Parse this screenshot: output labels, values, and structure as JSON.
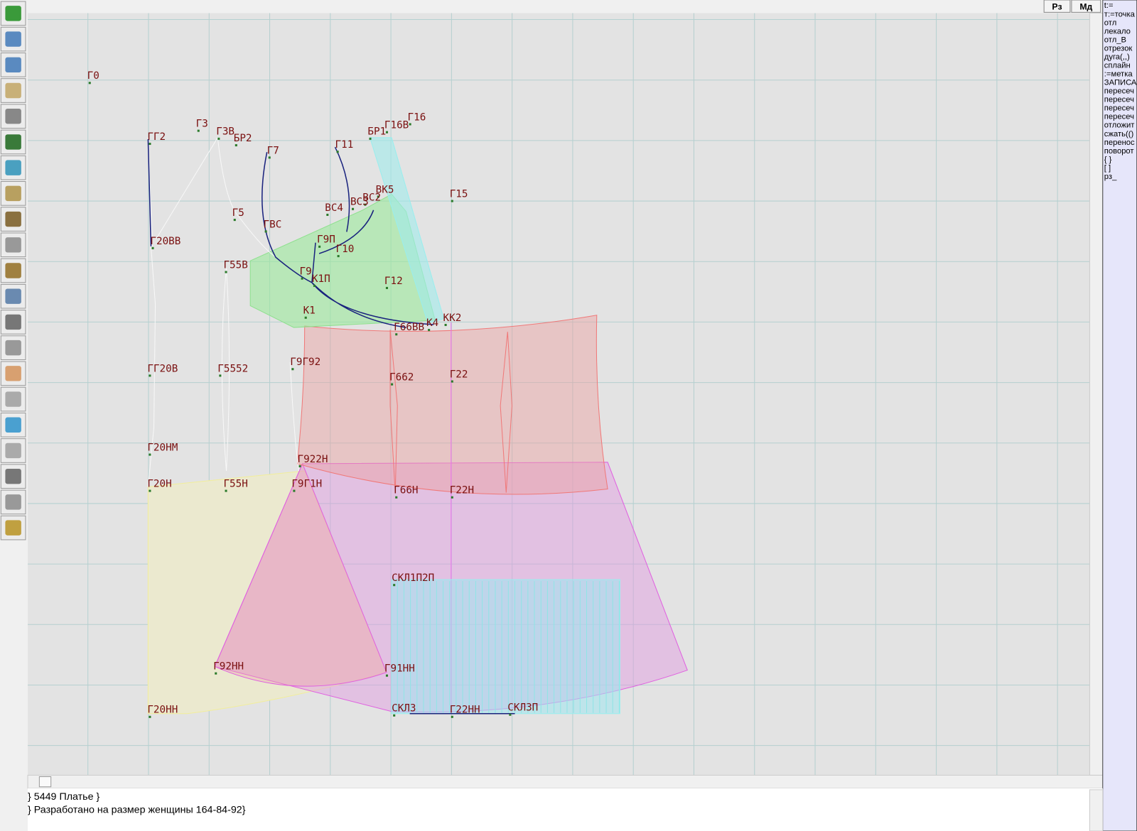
{
  "toolbar_buttons": [
    "Рз",
    "Мд"
  ],
  "command_panel": [
    "t:=",
    "т:=точка",
    "отл",
    "лекало",
    "отл_В",
    "отрезок",
    "дуга(,,)",
    "сплайн",
    ":=метка",
    "ЗАПИСА",
    "пересеч",
    "пересеч",
    "пересеч",
    "пересеч",
    "отложит",
    "сжать(()",
    "перенос",
    "поворот",
    "{ }",
    "[ ]",
    "рз_"
  ],
  "point_labels": [
    "Г0",
    "ГГ2",
    "Г3",
    "Г3В",
    "БР2",
    "Г7",
    "Г11",
    "Г16",
    "Г16В",
    "БР1",
    "ВК5",
    "ВС2",
    "ВС3",
    "ВС4",
    "Г15",
    "Г5",
    "ГВС",
    "Г20ВВ",
    "Г9П",
    "Г10",
    "Г55В",
    "Г9",
    "К1П",
    "Г12",
    "К1",
    "К4",
    "КК2",
    "Г66ВВ",
    "ГГ20В",
    "Г5552",
    "Г9Г92",
    "Г662",
    "Г22",
    "Г20НМ",
    "Г922Н",
    "Г20Н",
    "Г55Н",
    "Г9Г1Н",
    "Г66Н",
    "Г22Н",
    "СКЛ1П2П",
    "Г92НН",
    "Г91НН",
    "Г20НН",
    "СКЛ3",
    "Г22НН",
    "СКЛ3П"
  ],
  "status_lines": [
    "}    5449 Платье }",
    "} Разработано на размер женщины 164-84-92}"
  ]
}
